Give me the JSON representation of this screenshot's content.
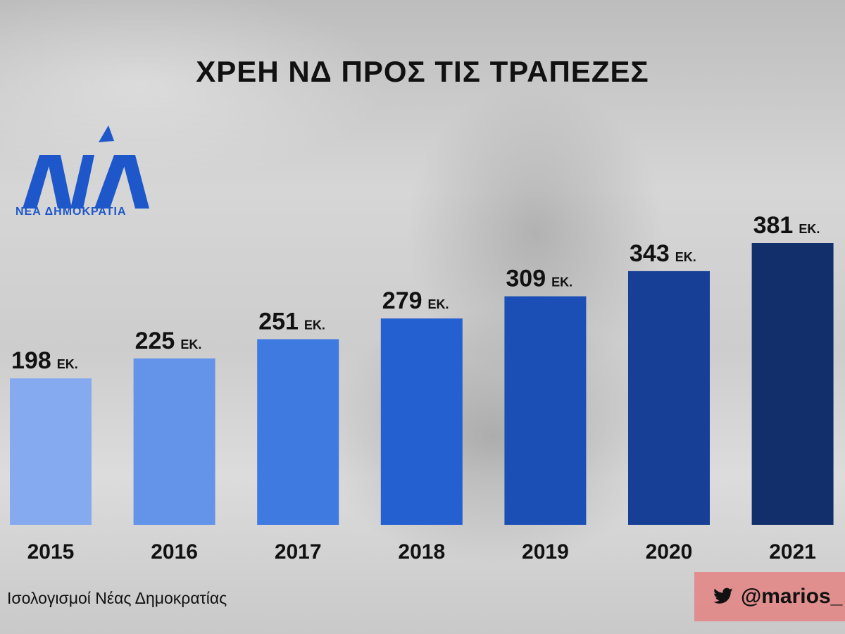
{
  "logo": {
    "text": "ΝΕΑ ΔΗΜΟΚΡΑΤΙΑ",
    "color": "#1d57c9"
  },
  "source": "Ισολογισμοί Νέας Δημοκρατίας",
  "twitter": {
    "icon": "twitter-bird-icon",
    "handle": "@marios_"
  },
  "chart_data": {
    "type": "bar",
    "title": "ΧΡΕΗ ΝΔ ΠΡΟΣ ΤΙΣ ΤΡΑΠΕΖΕΣ",
    "xlabel": "",
    "ylabel": "",
    "unit_label": "ΕΚ.",
    "categories": [
      "2015",
      "2016",
      "2017",
      "2018",
      "2019",
      "2020",
      "2021"
    ],
    "values": [
      198,
      225,
      251,
      279,
      309,
      343,
      381
    ],
    "colors": [
      "#86aaf0",
      "#6394ea",
      "#3f7ae0",
      "#2560d0",
      "#1c4fb6",
      "#173f95",
      "#132f6b"
    ],
    "ylim": [
      0,
      381
    ],
    "grid": false,
    "legend": "none"
  }
}
